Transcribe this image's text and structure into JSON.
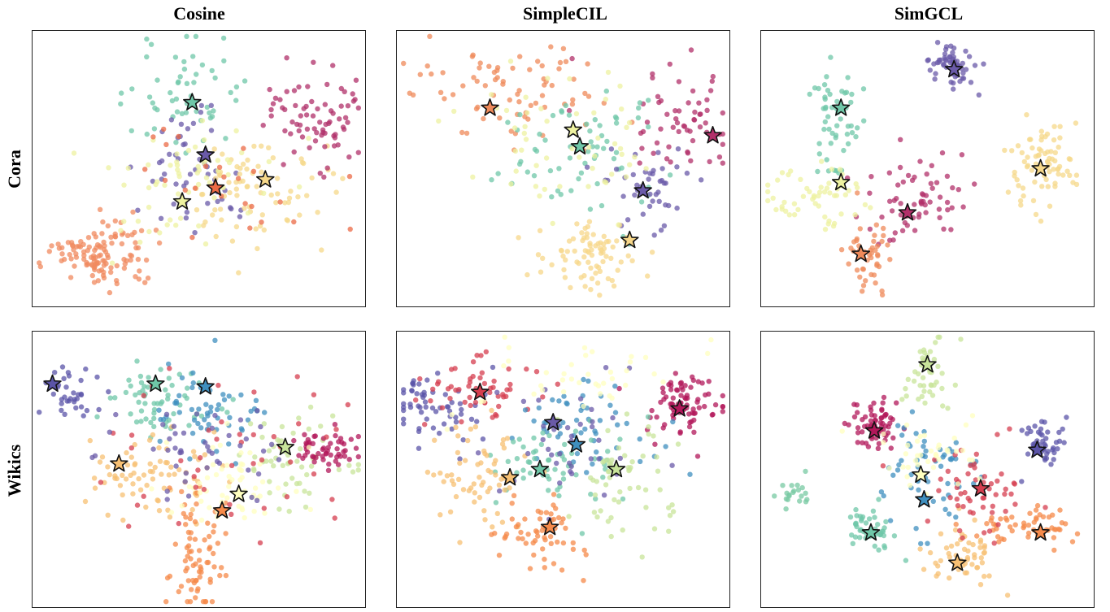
{
  "columns": [
    "Cosine",
    "SimpleCIL",
    "SimGCL"
  ],
  "rows": [
    "Cora",
    "Wikics"
  ],
  "chart_data": [
    {
      "type": "scatter",
      "dataset": "Cora",
      "method": "Cosine",
      "clusters": [
        {
          "color": "#f08a5f",
          "cx": 0.2,
          "cy": 0.82,
          "sx": 0.07,
          "sy": 0.06,
          "n": 120,
          "star": null
        },
        {
          "color": "#6fc7a8",
          "cx": 0.45,
          "cy": 0.22,
          "sx": 0.09,
          "sy": 0.1,
          "n": 55,
          "star": [
            0.48,
            0.26
          ]
        },
        {
          "color": "#6a5aa8",
          "cx": 0.5,
          "cy": 0.5,
          "sx": 0.1,
          "sy": 0.1,
          "n": 50,
          "star": [
            0.52,
            0.45
          ]
        },
        {
          "color": "#f6d88a",
          "cx": 0.68,
          "cy": 0.58,
          "sx": 0.11,
          "sy": 0.1,
          "n": 80,
          "star": [
            0.7,
            0.54
          ]
        },
        {
          "color": "#eef2a0",
          "cx": 0.47,
          "cy": 0.57,
          "sx": 0.12,
          "sy": 0.1,
          "n": 60,
          "star": [
            0.45,
            0.62
          ]
        },
        {
          "color": "#b0306a",
          "cx": 0.85,
          "cy": 0.3,
          "sx": 0.08,
          "sy": 0.09,
          "n": 75,
          "star": null
        },
        {
          "color": "#eb6a45",
          "cx": 0.55,
          "cy": 0.55,
          "sx": 0.15,
          "sy": 0.15,
          "n": 25,
          "star": [
            0.55,
            0.57
          ]
        }
      ]
    },
    {
      "type": "scatter",
      "dataset": "Cora",
      "method": "SimpleCIL",
      "clusters": [
        {
          "color": "#ef8a5a",
          "cx": 0.35,
          "cy": 0.22,
          "sx": 0.14,
          "sy": 0.1,
          "n": 75,
          "star": [
            0.28,
            0.28
          ]
        },
        {
          "color": "#b2306a",
          "cx": 0.85,
          "cy": 0.33,
          "sx": 0.1,
          "sy": 0.1,
          "n": 60,
          "star": [
            0.95,
            0.38
          ]
        },
        {
          "color": "#6fc7a8",
          "cx": 0.55,
          "cy": 0.45,
          "sx": 0.12,
          "sy": 0.12,
          "n": 65,
          "star": [
            0.55,
            0.42
          ]
        },
        {
          "color": "#6a5aa8",
          "cx": 0.75,
          "cy": 0.57,
          "sx": 0.08,
          "sy": 0.09,
          "n": 45,
          "star": [
            0.74,
            0.58
          ]
        },
        {
          "color": "#f7d78a",
          "cx": 0.58,
          "cy": 0.82,
          "sx": 0.07,
          "sy": 0.07,
          "n": 80,
          "star": [
            0.7,
            0.76
          ]
        },
        {
          "color": "#eef2a0",
          "cx": 0.5,
          "cy": 0.4,
          "sx": 0.18,
          "sy": 0.12,
          "n": 55,
          "star": [
            0.53,
            0.36
          ]
        }
      ]
    },
    {
      "type": "scatter",
      "dataset": "Cora",
      "method": "SimGCL",
      "clusters": [
        {
          "color": "#6a5aa8",
          "cx": 0.58,
          "cy": 0.13,
          "sx": 0.04,
          "sy": 0.04,
          "n": 60,
          "star": [
            0.58,
            0.14
          ]
        },
        {
          "color": "#6fc7a8",
          "cx": 0.22,
          "cy": 0.3,
          "sx": 0.04,
          "sy": 0.12,
          "n": 55,
          "star": [
            0.24,
            0.28
          ]
        },
        {
          "color": "#f6d88a",
          "cx": 0.85,
          "cy": 0.48,
          "sx": 0.05,
          "sy": 0.08,
          "n": 75,
          "star": [
            0.84,
            0.5
          ]
        },
        {
          "color": "#b2306a",
          "cx": 0.47,
          "cy": 0.6,
          "sx": 0.08,
          "sy": 0.09,
          "n": 65,
          "star": [
            0.44,
            0.66
          ]
        },
        {
          "color": "#ef8a5a",
          "cx": 0.33,
          "cy": 0.82,
          "sx": 0.04,
          "sy": 0.07,
          "n": 45,
          "star": [
            0.3,
            0.81
          ]
        },
        {
          "color": "#eef2a0",
          "cx": 0.15,
          "cy": 0.6,
          "sx": 0.08,
          "sy": 0.06,
          "n": 55,
          "star": [
            0.24,
            0.55
          ]
        }
      ]
    },
    {
      "type": "scatter",
      "dataset": "Wikics",
      "method": "Cosine",
      "clusters": [
        {
          "color": "#5b54a8",
          "cx": 0.1,
          "cy": 0.22,
          "sx": 0.05,
          "sy": 0.05,
          "n": 35,
          "star": [
            0.06,
            0.19
          ]
        },
        {
          "color": "#6fc7a8",
          "cx": 0.38,
          "cy": 0.24,
          "sx": 0.08,
          "sy": 0.07,
          "n": 60,
          "star": [
            0.37,
            0.19
          ]
        },
        {
          "color": "#3f8fbf",
          "cx": 0.54,
          "cy": 0.3,
          "sx": 0.08,
          "sy": 0.08,
          "n": 55,
          "star": [
            0.52,
            0.2
          ]
        },
        {
          "color": "#c8e49a",
          "cx": 0.78,
          "cy": 0.45,
          "sx": 0.08,
          "sy": 0.08,
          "n": 55,
          "star": [
            0.76,
            0.42
          ]
        },
        {
          "color": "#b2175a",
          "cx": 0.88,
          "cy": 0.43,
          "sx": 0.05,
          "sy": 0.04,
          "n": 55,
          "star": null
        },
        {
          "color": "#f7c073",
          "cx": 0.36,
          "cy": 0.52,
          "sx": 0.1,
          "sy": 0.08,
          "n": 75,
          "star": [
            0.26,
            0.48
          ]
        },
        {
          "color": "#f68a4a",
          "cx": 0.5,
          "cy": 0.8,
          "sx": 0.04,
          "sy": 0.12,
          "n": 75,
          "star": [
            0.57,
            0.65
          ]
        },
        {
          "color": "#ffffbf",
          "cx": 0.6,
          "cy": 0.55,
          "sx": 0.1,
          "sy": 0.08,
          "n": 55,
          "star": [
            0.62,
            0.59
          ]
        },
        {
          "color": "#d53e4f",
          "cx": 0.55,
          "cy": 0.45,
          "sx": 0.18,
          "sy": 0.15,
          "n": 45,
          "star": null
        },
        {
          "color": "#6a5aa8",
          "cx": 0.5,
          "cy": 0.42,
          "sx": 0.14,
          "sy": 0.1,
          "n": 45,
          "star": null
        }
      ]
    },
    {
      "type": "scatter",
      "dataset": "Wikics",
      "method": "SimpleCIL",
      "clusters": [
        {
          "color": "#5b54a8",
          "cx": 0.12,
          "cy": 0.28,
          "sx": 0.07,
          "sy": 0.07,
          "n": 60,
          "star": null
        },
        {
          "color": "#d53e4f",
          "cx": 0.22,
          "cy": 0.22,
          "sx": 0.09,
          "sy": 0.07,
          "n": 55,
          "star": [
            0.25,
            0.22
          ]
        },
        {
          "color": "#b2175a",
          "cx": 0.87,
          "cy": 0.26,
          "sx": 0.07,
          "sy": 0.06,
          "n": 80,
          "star": [
            0.85,
            0.28
          ]
        },
        {
          "color": "#3f8fbf",
          "cx": 0.55,
          "cy": 0.35,
          "sx": 0.12,
          "sy": 0.09,
          "n": 55,
          "star": [
            0.54,
            0.41
          ]
        },
        {
          "color": "#6fc7a8",
          "cx": 0.46,
          "cy": 0.48,
          "sx": 0.1,
          "sy": 0.08,
          "n": 60,
          "star": [
            0.43,
            0.5
          ]
        },
        {
          "color": "#f7c073",
          "cx": 0.25,
          "cy": 0.52,
          "sx": 0.07,
          "sy": 0.1,
          "n": 65,
          "star": [
            0.34,
            0.53
          ]
        },
        {
          "color": "#f68a4a",
          "cx": 0.43,
          "cy": 0.75,
          "sx": 0.07,
          "sy": 0.07,
          "n": 60,
          "star": [
            0.46,
            0.71
          ]
        },
        {
          "color": "#c8e49a",
          "cx": 0.68,
          "cy": 0.55,
          "sx": 0.08,
          "sy": 0.1,
          "n": 55,
          "star": [
            0.66,
            0.5
          ]
        },
        {
          "color": "#6a5aa8",
          "cx": 0.5,
          "cy": 0.4,
          "sx": 0.14,
          "sy": 0.12,
          "n": 40,
          "star": [
            0.47,
            0.33
          ]
        },
        {
          "color": "#ffffbf",
          "cx": 0.55,
          "cy": 0.15,
          "sx": 0.16,
          "sy": 0.08,
          "n": 40,
          "star": null
        }
      ]
    },
    {
      "type": "scatter",
      "dataset": "Wikics",
      "method": "SimGCL",
      "clusters": [
        {
          "color": "#c8e49a",
          "cx": 0.5,
          "cy": 0.16,
          "sx": 0.04,
          "sy": 0.07,
          "n": 45,
          "star": [
            0.5,
            0.12
          ]
        },
        {
          "color": "#b2175a",
          "cx": 0.33,
          "cy": 0.34,
          "sx": 0.04,
          "sy": 0.05,
          "n": 65,
          "star": [
            0.34,
            0.36
          ]
        },
        {
          "color": "#5b54a8",
          "cx": 0.85,
          "cy": 0.4,
          "sx": 0.03,
          "sy": 0.04,
          "n": 45,
          "star": [
            0.83,
            0.43
          ]
        },
        {
          "color": "#3f8fbf",
          "cx": 0.5,
          "cy": 0.52,
          "sx": 0.07,
          "sy": 0.09,
          "n": 60,
          "star": [
            0.49,
            0.61
          ]
        },
        {
          "color": "#6fc7a8",
          "cx": 0.33,
          "cy": 0.73,
          "sx": 0.04,
          "sy": 0.04,
          "n": 45,
          "star": [
            0.33,
            0.73
          ]
        },
        {
          "color": "#f7c073",
          "cx": 0.6,
          "cy": 0.82,
          "sx": 0.05,
          "sy": 0.05,
          "n": 55,
          "star": [
            0.59,
            0.84
          ]
        },
        {
          "color": "#f68a4a",
          "cx": 0.8,
          "cy": 0.72,
          "sx": 0.08,
          "sy": 0.04,
          "n": 55,
          "star": [
            0.84,
            0.73
          ]
        },
        {
          "color": "#d53e4f",
          "cx": 0.65,
          "cy": 0.57,
          "sx": 0.08,
          "sy": 0.09,
          "n": 55,
          "star": [
            0.66,
            0.57
          ]
        },
        {
          "color": "#ffffbf",
          "cx": 0.52,
          "cy": 0.47,
          "sx": 0.08,
          "sy": 0.07,
          "n": 40,
          "star": [
            0.48,
            0.52
          ]
        },
        {
          "color": "#78c9a3",
          "cx": 0.09,
          "cy": 0.58,
          "sx": 0.02,
          "sy": 0.03,
          "n": 20,
          "star": null
        }
      ]
    }
  ]
}
